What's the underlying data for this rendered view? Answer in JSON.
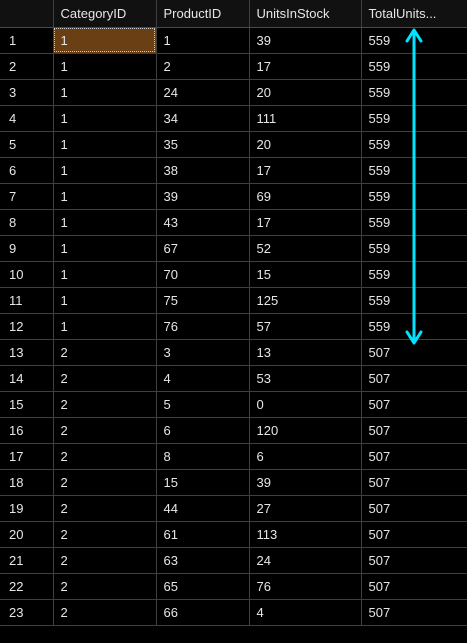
{
  "grid": {
    "columns": [
      "",
      "CategoryID",
      "ProductID",
      "UnitsInStock",
      "TotalUnits..."
    ],
    "rows": [
      [
        "1",
        "1",
        "1",
        "39",
        "559"
      ],
      [
        "2",
        "1",
        "2",
        "17",
        "559"
      ],
      [
        "3",
        "1",
        "24",
        "20",
        "559"
      ],
      [
        "4",
        "1",
        "34",
        "111",
        "559"
      ],
      [
        "5",
        "1",
        "35",
        "20",
        "559"
      ],
      [
        "6",
        "1",
        "38",
        "17",
        "559"
      ],
      [
        "7",
        "1",
        "39",
        "69",
        "559"
      ],
      [
        "8",
        "1",
        "43",
        "17",
        "559"
      ],
      [
        "9",
        "1",
        "67",
        "52",
        "559"
      ],
      [
        "10",
        "1",
        "70",
        "15",
        "559"
      ],
      [
        "11",
        "1",
        "75",
        "125",
        "559"
      ],
      [
        "12",
        "1",
        "76",
        "57",
        "559"
      ],
      [
        "13",
        "2",
        "3",
        "13",
        "507"
      ],
      [
        "14",
        "2",
        "4",
        "53",
        "507"
      ],
      [
        "15",
        "2",
        "5",
        "0",
        "507"
      ],
      [
        "16",
        "2",
        "6",
        "120",
        "507"
      ],
      [
        "17",
        "2",
        "8",
        "6",
        "507"
      ],
      [
        "18",
        "2",
        "15",
        "39",
        "507"
      ],
      [
        "19",
        "2",
        "44",
        "27",
        "507"
      ],
      [
        "20",
        "2",
        "61",
        "113",
        "507"
      ],
      [
        "21",
        "2",
        "63",
        "24",
        "507"
      ],
      [
        "22",
        "2",
        "65",
        "76",
        "507"
      ],
      [
        "23",
        "2",
        "66",
        "4",
        "507"
      ]
    ],
    "selected_cell": {
      "row": 1,
      "column": "CategoryID"
    }
  },
  "annotation": {
    "icon": "double-headed-vertical-arrow",
    "color": "#00e5ff",
    "spans_rows": [
      "1",
      "12"
    ]
  },
  "colors": {
    "background": "#000000",
    "text": "#e6e6e6",
    "gridline": "#3f3f3f",
    "selection": "#6b3f14",
    "arrow": "#00e5ff"
  }
}
